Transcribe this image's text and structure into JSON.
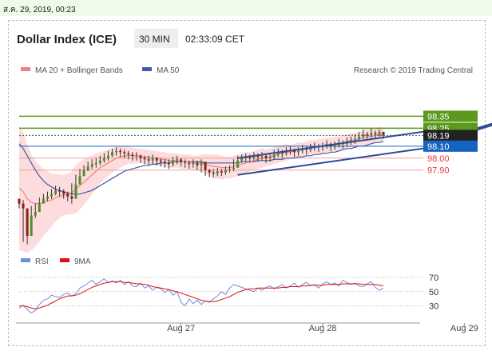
{
  "header": {
    "timestamp": "ส.ค. 29, 2019, 00:23",
    "title": "Dollar Index (ICE)",
    "timeframe": "30 MIN",
    "time": "02:33:09 CET"
  },
  "legend": {
    "ma20": "MA 20 + Bollinger Bands",
    "ma50": "MA 50",
    "source": "Research © 2019 Trading Central",
    "rsi": "RSI",
    "rsi_ma": "9MA"
  },
  "colors": {
    "resistance": "#5b9a1c",
    "support": "#1565c0",
    "pivot": "#e53935",
    "ma20": "#f08080",
    "ma50": "#3a5fa8",
    "bands": "#fcdcdc",
    "channel": "#2a4d9a",
    "rsi": "#6b8fd8",
    "rsi_ma": "#e01010",
    "price_tag": "#222222"
  },
  "chart_data": [
    {
      "type": "line",
      "title": "Dollar Index (ICE)",
      "x_ticks": [
        "Aug 27",
        "Aug 28",
        "Aug 29"
      ],
      "x_tick_index": [
        40,
        75,
        110
      ],
      "ylim": [
        97.25,
        98.6
      ],
      "levels": [
        {
          "value": 98.35,
          "label": "98.35",
          "kind": "resistance"
        },
        {
          "value": 98.25,
          "label": "98.25",
          "kind": "resistance"
        },
        {
          "value": 98.19,
          "label": "98.19",
          "kind": "last"
        },
        {
          "value": 98.1,
          "label": "98.10",
          "kind": "support"
        },
        {
          "value": 98.0,
          "label": "98.00",
          "kind": "pivot"
        },
        {
          "value": 97.9,
          "label": "97.90",
          "kind": "pivot"
        }
      ],
      "ohlc_close": [
        97.62,
        97.58,
        97.35,
        97.52,
        97.55,
        97.62,
        97.66,
        97.68,
        97.7,
        97.73,
        97.72,
        97.7,
        97.68,
        97.66,
        97.78,
        97.85,
        97.9,
        97.93,
        97.95,
        97.96,
        97.98,
        98.0,
        98.02,
        98.05,
        98.06,
        98.05,
        98.04,
        98.03,
        98.02,
        98.02,
        98.0,
        97.99,
        97.98,
        98.0,
        97.98,
        97.97,
        97.96,
        97.95,
        97.98,
        97.99,
        97.97,
        97.96,
        97.95,
        97.96,
        97.94,
        97.97,
        97.9,
        97.88,
        97.87,
        97.89,
        97.88,
        97.9,
        97.91,
        97.92,
        97.98,
        98.0,
        98.01,
        98.0,
        98.02,
        98.01,
        98.02,
        98.0,
        98.01,
        98.03,
        98.05,
        98.04,
        98.06,
        98.07,
        98.05,
        98.06,
        98.08,
        98.07,
        98.09,
        98.1,
        98.09,
        98.1,
        98.12,
        98.1,
        98.11,
        98.13,
        98.12,
        98.14,
        98.15,
        98.16,
        98.18,
        98.2,
        98.19,
        98.21,
        98.2,
        98.22,
        98.19
      ],
      "ohlc_high": [
        97.66,
        97.65,
        97.55,
        97.6,
        97.62,
        97.67,
        97.7,
        97.72,
        97.74,
        97.77,
        97.76,
        97.74,
        97.72,
        97.79,
        97.86,
        97.91,
        97.94,
        97.97,
        97.99,
        98.0,
        98.02,
        98.04,
        98.06,
        98.08,
        98.09,
        98.08,
        98.07,
        98.06,
        98.05,
        98.05,
        98.03,
        98.02,
        98.02,
        98.03,
        98.01,
        98.0,
        97.99,
        97.99,
        98.01,
        98.02,
        98.0,
        97.99,
        97.98,
        97.99,
        97.98,
        97.99,
        97.94,
        97.91,
        97.91,
        97.92,
        97.91,
        97.93,
        97.94,
        97.99,
        98.02,
        98.03,
        98.04,
        98.03,
        98.05,
        98.04,
        98.05,
        98.03,
        98.04,
        98.07,
        98.08,
        98.07,
        98.09,
        98.1,
        98.08,
        98.09,
        98.11,
        98.1,
        98.12,
        98.13,
        98.12,
        98.13,
        98.15,
        98.13,
        98.14,
        98.16,
        98.15,
        98.17,
        98.18,
        98.2,
        98.22,
        98.24,
        98.22,
        98.25,
        98.23,
        98.24,
        98.22
      ],
      "ohlc_low": [
        97.58,
        97.3,
        97.28,
        97.4,
        97.5,
        97.56,
        97.62,
        97.64,
        97.66,
        97.69,
        97.68,
        97.66,
        97.64,
        97.62,
        97.7,
        97.78,
        97.85,
        97.89,
        97.91,
        97.92,
        97.94,
        97.96,
        97.98,
        98.01,
        98.02,
        98.01,
        98.0,
        97.99,
        97.98,
        97.98,
        97.96,
        97.95,
        97.94,
        97.95,
        97.94,
        97.93,
        97.92,
        97.91,
        97.93,
        97.95,
        97.93,
        97.92,
        97.91,
        97.92,
        97.9,
        97.88,
        97.85,
        97.84,
        97.84,
        97.85,
        97.85,
        97.86,
        97.88,
        97.89,
        97.92,
        97.96,
        97.97,
        97.96,
        97.98,
        97.97,
        97.98,
        97.96,
        97.97,
        97.99,
        98.01,
        98.0,
        98.02,
        98.03,
        98.01,
        98.02,
        98.04,
        98.03,
        98.05,
        98.06,
        98.05,
        98.06,
        98.08,
        98.06,
        98.07,
        98.09,
        98.08,
        98.1,
        98.11,
        98.12,
        98.14,
        98.16,
        98.15,
        98.17,
        98.16,
        98.18,
        98.16
      ],
      "ma20": [
        97.75,
        97.72,
        97.66,
        97.63,
        97.62,
        97.62,
        97.63,
        97.64,
        97.65,
        97.67,
        97.68,
        97.69,
        97.7,
        97.71,
        97.74,
        97.77,
        97.8,
        97.83,
        97.86,
        97.89,
        97.92,
        97.94,
        97.96,
        97.98,
        98.0,
        98.01,
        98.02,
        98.02,
        98.02,
        98.02,
        98.02,
        98.01,
        98.01,
        98.0,
        98.0,
        97.99,
        97.99,
        97.98,
        97.98,
        97.98,
        97.97,
        97.97,
        97.97,
        97.96,
        97.96,
        97.96,
        97.95,
        97.94,
        97.93,
        97.93,
        97.92,
        97.92,
        97.92,
        97.93,
        97.94,
        97.95,
        97.96,
        97.97,
        97.98,
        97.99,
        98.0,
        98.0,
        98.01,
        98.02,
        98.03,
        98.04,
        98.05,
        98.05,
        98.06,
        98.07,
        98.07,
        98.08,
        98.09,
        98.09,
        98.1,
        98.1,
        98.11,
        98.11,
        98.12,
        98.12,
        98.13,
        98.14,
        98.15,
        98.15,
        98.16,
        98.17,
        98.18,
        98.18,
        98.19,
        98.2,
        98.2
      ],
      "ma50": [
        98.12,
        98.08,
        98.02,
        97.96,
        97.9,
        97.85,
        97.81,
        97.78,
        97.76,
        97.74,
        97.73,
        97.72,
        97.71,
        97.7,
        97.7,
        97.7,
        97.71,
        97.72,
        97.73,
        97.75,
        97.77,
        97.79,
        97.81,
        97.83,
        97.85,
        97.87,
        97.89,
        97.9,
        97.91,
        97.92,
        97.93,
        97.94,
        97.94,
        97.95,
        97.95,
        97.96,
        97.96,
        97.96,
        97.97,
        97.97,
        97.97,
        97.97,
        97.97,
        97.97,
        97.97,
        97.97,
        97.96,
        97.96,
        97.96,
        97.96,
        97.96,
        97.96,
        97.96,
        97.96,
        97.96,
        97.97,
        97.97,
        97.97,
        97.97,
        97.98,
        97.98,
        97.98,
        97.98,
        97.99,
        97.99,
        97.99,
        98.0,
        98.0,
        98.0,
        98.01,
        98.01,
        98.02,
        98.02,
        98.03,
        98.03,
        98.04,
        98.04,
        98.05,
        98.05,
        98.06,
        98.07,
        98.08,
        98.08,
        98.09,
        98.1,
        98.1,
        98.11,
        98.12,
        98.13,
        98.13,
        98.14
      ],
      "band_width": [
        0.52,
        0.5,
        0.45,
        0.4,
        0.36,
        0.32,
        0.28,
        0.25,
        0.22,
        0.2,
        0.18,
        0.17,
        0.17,
        0.18,
        0.2,
        0.2,
        0.19,
        0.18,
        0.16,
        0.15,
        0.13,
        0.12,
        0.11,
        0.1,
        0.1,
        0.09,
        0.08,
        0.07,
        0.07,
        0.06,
        0.06,
        0.06,
        0.06,
        0.06,
        0.06,
        0.06,
        0.06,
        0.06,
        0.06,
        0.06,
        0.06,
        0.06,
        0.06,
        0.06,
        0.06,
        0.07,
        0.08,
        0.09,
        0.1,
        0.1,
        0.1,
        0.09,
        0.09,
        0.09,
        0.09,
        0.09,
        0.09,
        0.08,
        0.08,
        0.08,
        0.08,
        0.07,
        0.07,
        0.07,
        0.07,
        0.07,
        0.07,
        0.06,
        0.06,
        0.06,
        0.06,
        0.06,
        0.06,
        0.06,
        0.06,
        0.06,
        0.06,
        0.06,
        0.06,
        0.06,
        0.06,
        0.06,
        0.06,
        0.06,
        0.06,
        0.06,
        0.06,
        0.06,
        0.06,
        0.06,
        0.06
      ],
      "channel_upper": {
        "x": [
          54,
          108
        ],
        "y": [
          98.0,
          98.26
        ]
      },
      "channel_lower": {
        "x": [
          54,
          108
        ],
        "y": [
          97.86,
          98.12
        ]
      },
      "forecast_arrow": {
        "x": [
          108,
          124
        ],
        "y": [
          98.19,
          98.37
        ]
      }
    },
    {
      "type": "line",
      "title": "RSI",
      "ylim": [
        15,
        80
      ],
      "y_ticks": [
        70,
        50,
        30
      ],
      "rsi": [
        27,
        31,
        25,
        20,
        24,
        32,
        38,
        40,
        45,
        43,
        42,
        46,
        48,
        44,
        47,
        55,
        58,
        62,
        66,
        60,
        64,
        68,
        63,
        65,
        62,
        66,
        60,
        64,
        58,
        57,
        62,
        55,
        58,
        52,
        56,
        54,
        49,
        53,
        45,
        50,
        35,
        30,
        40,
        33,
        38,
        32,
        37,
        35,
        40,
        44,
        50,
        46,
        55,
        60,
        58,
        56,
        54,
        52,
        50,
        55,
        52,
        56,
        58,
        54,
        57,
        60,
        55,
        58,
        62,
        56,
        60,
        63,
        58,
        60,
        55,
        61,
        64,
        60,
        62,
        58,
        66,
        63,
        60,
        62,
        58,
        57,
        61,
        64,
        56,
        52,
        55
      ],
      "ma9": [
        30,
        30,
        29,
        27,
        26,
        27,
        29,
        31,
        34,
        37,
        40,
        42,
        44,
        44,
        45,
        47,
        50,
        53,
        56,
        58,
        60,
        62,
        63,
        64,
        64,
        64,
        63,
        63,
        62,
        61,
        61,
        60,
        59,
        57,
        56,
        55,
        54,
        53,
        51,
        50,
        48,
        46,
        44,
        42,
        40,
        38,
        37,
        36,
        36,
        37,
        39,
        41,
        43,
        46,
        49,
        51,
        53,
        54,
        54,
        55,
        55,
        55,
        55,
        55,
        55,
        56,
        56,
        57,
        57,
        57,
        58,
        58,
        59,
        59,
        59,
        59,
        60,
        60,
        60,
        60,
        61,
        61,
        61,
        61,
        61,
        60,
        60,
        60,
        60,
        59,
        58
      ]
    }
  ]
}
